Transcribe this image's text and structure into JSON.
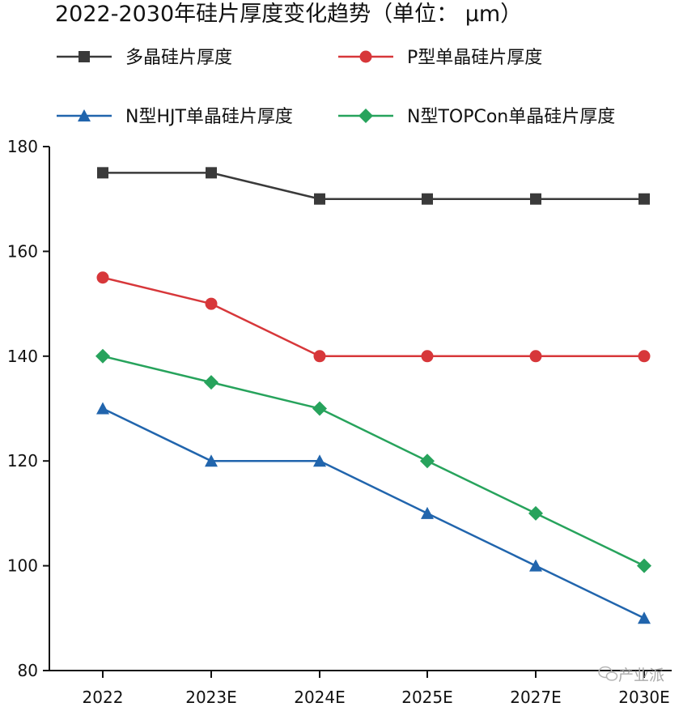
{
  "chart_data": {
    "type": "line",
    "title": "2022-2030年硅片厚度变化趋势（单位： μm）",
    "categories": [
      "2022",
      "2023E",
      "2024E",
      "2025E",
      "2027E",
      "2030E"
    ],
    "ylim": [
      80,
      180
    ],
    "yticks": [
      "80",
      "100",
      "120",
      "140",
      "160",
      "180"
    ],
    "grid": false,
    "legend_position": "top",
    "series": [
      {
        "name": "多晶硅片厚度",
        "values": [
          175,
          175,
          170,
          170,
          170,
          170
        ],
        "color": "#3a3a3a",
        "marker": "square"
      },
      {
        "name": "P型单晶硅片厚度",
        "values": [
          155,
          150,
          140,
          140,
          140,
          140
        ],
        "color": "#d7373a",
        "marker": "circle"
      },
      {
        "name": "N型HJT单晶硅片厚度",
        "values": [
          130,
          120,
          120,
          110,
          100,
          90
        ],
        "color": "#2165ad",
        "marker": "triangle"
      },
      {
        "name": "N型TOPCon单晶硅片厚度",
        "values": [
          140,
          135,
          130,
          120,
          110,
          100
        ],
        "color": "#27a35c",
        "marker": "diamond"
      }
    ]
  },
  "watermark": {
    "icon": "wechat-icon",
    "text": "产业派"
  }
}
